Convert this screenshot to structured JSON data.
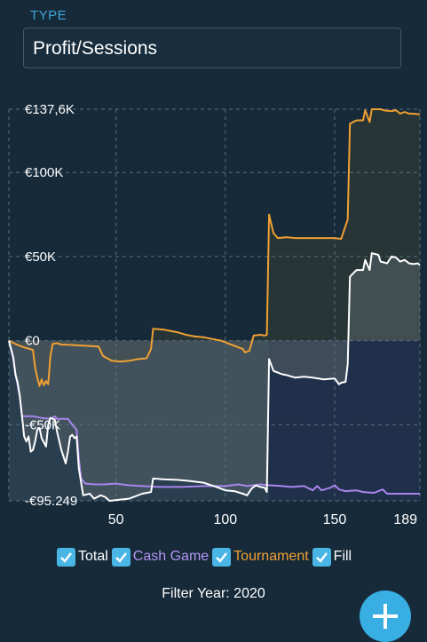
{
  "type_selector": {
    "label": "TYPE",
    "value": "Profit/Sessions"
  },
  "legend": [
    {
      "label": "Total",
      "color": "#ffffff",
      "checked": true
    },
    {
      "label": "Cash Game",
      "color": "#b496f2",
      "checked": true
    },
    {
      "label": "Tournament",
      "color": "#f0a032",
      "checked": true
    },
    {
      "label": "Fill",
      "color": "#ffffff",
      "checked": true
    }
  ],
  "filter_text": "Filter Year: 2020",
  "colors": {
    "total": "#ffffff",
    "cash_game": "#a886ee",
    "tournament": "#f0a032",
    "grid": "#5a6e7c",
    "background": "#162a3a",
    "fab": "#39aee3"
  },
  "chart_data": {
    "type": "line",
    "x_ticks": [
      "50",
      "100",
      "150",
      "189"
    ],
    "x_tick_values": [
      50,
      100,
      150,
      189
    ],
    "y_tick_labels": [
      "€137,6K",
      "€100K",
      "€50K",
      "€0",
      "-€50K",
      "-€95.249"
    ],
    "y_tick_values": [
      137600,
      100000,
      50000,
      0,
      -50000,
      -95249
    ],
    "xlim": [
      1,
      189
    ],
    "ylim": [
      -95249,
      137600
    ],
    "grid": true,
    "fill": true,
    "series": [
      {
        "name": "Tournament",
        "points": [
          [
            1,
            0
          ],
          [
            4,
            -2000
          ],
          [
            8,
            -4000
          ],
          [
            12,
            -5500
          ],
          [
            13,
            -16000
          ],
          [
            14,
            -22000
          ],
          [
            15,
            -27000
          ],
          [
            16,
            -23000
          ],
          [
            17,
            -26500
          ],
          [
            18,
            -24000
          ],
          [
            19,
            -26000
          ],
          [
            20,
            -9000
          ],
          [
            21,
            -2000
          ],
          [
            23,
            -1500
          ],
          [
            25,
            -2300
          ],
          [
            28,
            -2500
          ],
          [
            35,
            -3000
          ],
          [
            42,
            -3500
          ],
          [
            44,
            -9000
          ],
          [
            48,
            -12000
          ],
          [
            52,
            -12500
          ],
          [
            56,
            -12000
          ],
          [
            60,
            -11000
          ],
          [
            64,
            -10500
          ],
          [
            66,
            -5000
          ],
          [
            67,
            7000
          ],
          [
            72,
            6500
          ],
          [
            78,
            5000
          ],
          [
            82,
            3500
          ],
          [
            86,
            2500
          ],
          [
            90,
            2000
          ],
          [
            94,
            1000
          ],
          [
            98,
            0
          ],
          [
            102,
            -2000
          ],
          [
            106,
            -4000
          ],
          [
            108,
            -5000
          ],
          [
            109,
            -7000
          ],
          [
            111,
            -6000
          ],
          [
            113,
            3000
          ],
          [
            116,
            3500
          ],
          [
            118,
            3000
          ],
          [
            119,
            3500
          ],
          [
            120,
            75000
          ],
          [
            122,
            64000
          ],
          [
            124,
            61000
          ],
          [
            128,
            61500
          ],
          [
            132,
            61000
          ],
          [
            136,
            61000
          ],
          [
            140,
            61000
          ],
          [
            144,
            61000
          ],
          [
            150,
            61000
          ],
          [
            153,
            60500
          ],
          [
            156,
            72000
          ],
          [
            157,
            129000
          ],
          [
            160,
            131000
          ],
          [
            163,
            131000
          ],
          [
            164,
            137000
          ],
          [
            166,
            130000
          ],
          [
            167,
            137600
          ],
          [
            171,
            137600
          ],
          [
            173,
            136800
          ],
          [
            176,
            136500
          ],
          [
            178,
            137000
          ],
          [
            180,
            135000
          ],
          [
            182,
            136000
          ],
          [
            184,
            135000
          ],
          [
            187,
            134800
          ],
          [
            189,
            134500
          ]
        ]
      },
      {
        "name": "Total",
        "points": [
          [
            1,
            0
          ],
          [
            3,
            -10000
          ],
          [
            4,
            -20000
          ],
          [
            5,
            -25000
          ],
          [
            6,
            -33000
          ],
          [
            7,
            -45000
          ],
          [
            8,
            -57000
          ],
          [
            9,
            -60000
          ],
          [
            10,
            -57000
          ],
          [
            11,
            -66000
          ],
          [
            12,
            -65000
          ],
          [
            13,
            -60000
          ],
          [
            14,
            -53000
          ],
          [
            15,
            -52000
          ],
          [
            16,
            -58000
          ],
          [
            18,
            -63000
          ],
          [
            19,
            -50000
          ],
          [
            20,
            -46000
          ],
          [
            22,
            -47000
          ],
          [
            23,
            -54000
          ],
          [
            25,
            -65000
          ],
          [
            27,
            -73000
          ],
          [
            28,
            -66000
          ],
          [
            29,
            -57000
          ],
          [
            30,
            -56000
          ],
          [
            31,
            -58000
          ],
          [
            32,
            -57000
          ],
          [
            33,
            -76000
          ],
          [
            35,
            -92000
          ],
          [
            38,
            -91000
          ],
          [
            40,
            -94000
          ],
          [
            43,
            -92000
          ],
          [
            45,
            -93000
          ],
          [
            47,
            -95249
          ],
          [
            52,
            -94500
          ],
          [
            56,
            -94000
          ],
          [
            62,
            -91000
          ],
          [
            66,
            -90000
          ],
          [
            67,
            -82000
          ],
          [
            72,
            -82500
          ],
          [
            78,
            -82800
          ],
          [
            84,
            -83500
          ],
          [
            90,
            -84500
          ],
          [
            96,
            -87000
          ],
          [
            100,
            -89000
          ],
          [
            104,
            -89500
          ],
          [
            108,
            -91000
          ],
          [
            110,
            -92000
          ],
          [
            112,
            -88000
          ],
          [
            114,
            -86000
          ],
          [
            116,
            -87000
          ],
          [
            118,
            -87500
          ],
          [
            119,
            -90000
          ],
          [
            120,
            -11000
          ],
          [
            122,
            -18000
          ],
          [
            124,
            -19000
          ],
          [
            126,
            -20000
          ],
          [
            128,
            -20500
          ],
          [
            132,
            -22000
          ],
          [
            136,
            -21500
          ],
          [
            140,
            -22000
          ],
          [
            145,
            -23000
          ],
          [
            150,
            -22500
          ],
          [
            152,
            -26000
          ],
          [
            153,
            -25000
          ],
          [
            155,
            -24500
          ],
          [
            156,
            -14000
          ],
          [
            157,
            38000
          ],
          [
            160,
            42000
          ],
          [
            163,
            42000
          ],
          [
            164,
            48000
          ],
          [
            166,
            42000
          ],
          [
            167,
            52000
          ],
          [
            170,
            51000
          ],
          [
            171,
            47000
          ],
          [
            174,
            46000
          ],
          [
            176,
            50000
          ],
          [
            178,
            49500
          ],
          [
            180,
            47000
          ],
          [
            182,
            48000
          ],
          [
            184,
            46000
          ],
          [
            186,
            45500
          ],
          [
            188,
            46000
          ],
          [
            189,
            45000
          ]
        ]
      },
      {
        "name": "Cash Game",
        "points": [
          [
            1,
            0
          ],
          [
            3,
            -10000
          ],
          [
            4,
            -20000
          ],
          [
            6,
            -33000
          ],
          [
            7,
            -45000
          ],
          [
            12,
            -45000
          ],
          [
            16,
            -46000
          ],
          [
            20,
            -46500
          ],
          [
            22,
            -45000
          ],
          [
            23,
            -46500
          ],
          [
            28,
            -46500
          ],
          [
            30,
            -50000
          ],
          [
            32,
            -53000
          ],
          [
            33,
            -70000
          ],
          [
            34,
            -82000
          ],
          [
            36,
            -85000
          ],
          [
            40,
            -85500
          ],
          [
            45,
            -85500
          ],
          [
            50,
            -85000
          ],
          [
            56,
            -86000
          ],
          [
            62,
            -86500
          ],
          [
            70,
            -87000
          ],
          [
            80,
            -87000
          ],
          [
            90,
            -86500
          ],
          [
            100,
            -86500
          ],
          [
            106,
            -85500
          ],
          [
            110,
            -86500
          ],
          [
            116,
            -85500
          ],
          [
            120,
            -86000
          ],
          [
            126,
            -86500
          ],
          [
            130,
            -87000
          ],
          [
            136,
            -86500
          ],
          [
            140,
            -89000
          ],
          [
            142,
            -86500
          ],
          [
            144,
            -89000
          ],
          [
            148,
            -87500
          ],
          [
            150,
            -86000
          ],
          [
            152,
            -88500
          ],
          [
            155,
            -89500
          ],
          [
            160,
            -89000
          ],
          [
            163,
            -90000
          ],
          [
            168,
            -90500
          ],
          [
            172,
            -88500
          ],
          [
            174,
            -91000
          ],
          [
            180,
            -91000
          ],
          [
            189,
            -91000
          ]
        ]
      }
    ]
  }
}
